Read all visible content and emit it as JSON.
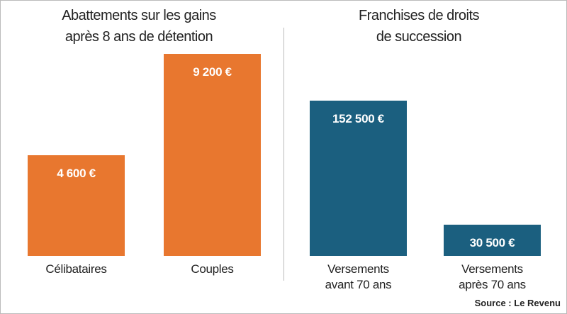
{
  "chart_data": [
    {
      "type": "bar",
      "title": "Abattements sur les gains\naprès 8 ans de détention",
      "categories": [
        "Célibataires",
        "Couples"
      ],
      "values": [
        4600,
        9200
      ],
      "value_labels": [
        "4 600 €",
        "9 200 €"
      ],
      "color": "#e8772f"
    },
    {
      "type": "bar",
      "title": "Franchises de droits\nde succession",
      "categories": [
        "Versements\navant 70 ans",
        "Versements\naprès 70 ans"
      ],
      "values": [
        152500,
        30500
      ],
      "value_labels": [
        "152 500 €",
        "30 500 €"
      ],
      "color": "#1b5f7f"
    }
  ],
  "source": "Source : Le Revenu"
}
